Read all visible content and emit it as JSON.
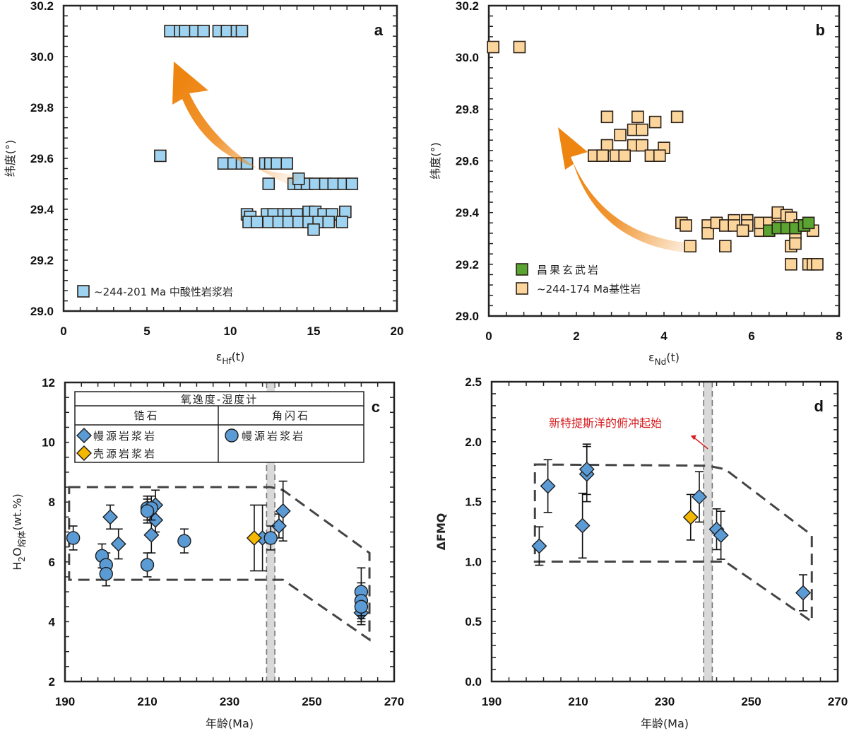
{
  "chart_data": [
    {
      "panel": "a",
      "type": "scatter",
      "title": "",
      "xlabel": "εHf(t)",
      "xlabel_main": "ε",
      "xlabel_sub": "Hf",
      "xlabel_tail": "(t)",
      "ylabel": "纬度(°)",
      "xlim": [
        0,
        20
      ],
      "ylim": [
        29.0,
        30.2
      ],
      "xticks": [
        0,
        5,
        10,
        15,
        20
      ],
      "yticks": [
        29.0,
        29.2,
        29.4,
        29.6,
        29.8,
        30.0,
        30.2
      ],
      "ytick_labels": [
        "29.0",
        "29.2",
        "29.4",
        "29.6",
        "29.8",
        "30.0",
        "30.2"
      ],
      "grid": false,
      "legend_position": "bottom-left",
      "panel_letter": "a",
      "trend_arrow": {
        "from": [
          12.7,
          29.45
        ],
        "to": [
          6.0,
          30.0
        ],
        "color": "#ee8511"
      },
      "series": [
        {
          "name": "~244-201 Ma 中酸性岩浆岩",
          "marker": "square",
          "color": "#9fd3f2",
          "points": [
            [
              6.4,
              30.1
            ],
            [
              7.0,
              30.1
            ],
            [
              7.3,
              30.1
            ],
            [
              7.9,
              30.1
            ],
            [
              8.4,
              30.1
            ],
            [
              9.3,
              30.1
            ],
            [
              9.8,
              30.1
            ],
            [
              10.4,
              30.1
            ],
            [
              10.7,
              30.1
            ],
            [
              5.8,
              29.61
            ],
            [
              9.6,
              29.58
            ],
            [
              10.2,
              29.58
            ],
            [
              10.7,
              29.58
            ],
            [
              11.0,
              29.58
            ],
            [
              12.1,
              29.58
            ],
            [
              12.4,
              29.58
            ],
            [
              12.8,
              29.58
            ],
            [
              13.4,
              29.58
            ],
            [
              12.3,
              29.5
            ],
            [
              13.8,
              29.5
            ],
            [
              14.2,
              29.5
            ],
            [
              14.6,
              29.5
            ],
            [
              15.1,
              29.5
            ],
            [
              15.7,
              29.5
            ],
            [
              16.2,
              29.5
            ],
            [
              16.8,
              29.5
            ],
            [
              17.3,
              29.5
            ],
            [
              14.1,
              29.52
            ],
            [
              11.0,
              29.38
            ],
            [
              11.2,
              29.37
            ],
            [
              12.2,
              29.38
            ],
            [
              12.6,
              29.38
            ],
            [
              13.2,
              29.38
            ],
            [
              13.5,
              29.38
            ],
            [
              14.0,
              29.38
            ],
            [
              14.7,
              29.39
            ],
            [
              15.1,
              29.39
            ],
            [
              15.6,
              29.38
            ],
            [
              16.1,
              29.38
            ],
            [
              16.9,
              29.39
            ],
            [
              11.1,
              29.35
            ],
            [
              11.6,
              29.35
            ],
            [
              12.3,
              29.35
            ],
            [
              12.9,
              29.35
            ],
            [
              13.5,
              29.35
            ],
            [
              14.1,
              29.35
            ],
            [
              14.7,
              29.35
            ],
            [
              15.3,
              29.35
            ],
            [
              15.9,
              29.35
            ],
            [
              16.7,
              29.35
            ],
            [
              15.0,
              29.32
            ]
          ]
        }
      ]
    },
    {
      "panel": "b",
      "type": "scatter",
      "title": "",
      "xlabel": "εNd(t)",
      "xlabel_main": "ε",
      "xlabel_sub": "Nd",
      "xlabel_tail": "(t)",
      "ylabel": "纬度(°)",
      "xlim": [
        0,
        8
      ],
      "ylim": [
        29.0,
        30.2
      ],
      "xticks": [
        0,
        2,
        4,
        6,
        8
      ],
      "yticks": [
        29.0,
        29.2,
        29.4,
        29.6,
        29.8,
        30.0,
        30.2
      ],
      "ytick_labels": [
        "29.0",
        "29.2",
        "29.4",
        "29.6",
        "29.8",
        "30.0",
        "30.2"
      ],
      "grid": false,
      "legend_position": "bottom-left",
      "panel_letter": "b",
      "trend_arrow": {
        "from": [
          4.6,
          29.26
        ],
        "to": [
          1.6,
          29.73
        ],
        "color": "#ee8511"
      },
      "series": [
        {
          "name": "昌果玄武岩",
          "marker": "square",
          "color": "#5aa532",
          "points": [
            [
              6.4,
              29.33
            ],
            [
              6.6,
              29.34
            ],
            [
              6.8,
              29.34
            ],
            [
              7.0,
              29.34
            ],
            [
              7.2,
              29.35
            ],
            [
              7.3,
              29.36
            ]
          ]
        },
        {
          "name": "~244-174 Ma基性岩",
          "marker": "square",
          "color": "#fcd59c",
          "points": [
            [
              0.1,
              30.04
            ],
            [
              0.7,
              30.04
            ],
            [
              2.7,
              29.77
            ],
            [
              3.4,
              29.77
            ],
            [
              3.8,
              29.75
            ],
            [
              4.3,
              29.77
            ],
            [
              3.3,
              29.72
            ],
            [
              3.5,
              29.72
            ],
            [
              3.0,
              29.7
            ],
            [
              2.7,
              29.66
            ],
            [
              3.3,
              29.66
            ],
            [
              3.5,
              29.66
            ],
            [
              4.0,
              29.65
            ],
            [
              2.4,
              29.62
            ],
            [
              2.6,
              29.62
            ],
            [
              2.9,
              29.62
            ],
            [
              3.1,
              29.62
            ],
            [
              3.7,
              29.62
            ],
            [
              3.9,
              29.62
            ],
            [
              4.4,
              29.36
            ],
            [
              4.5,
              29.35
            ],
            [
              4.6,
              29.27
            ],
            [
              5.0,
              29.35
            ],
            [
              5.0,
              29.32
            ],
            [
              5.2,
              29.36
            ],
            [
              5.4,
              29.35
            ],
            [
              5.6,
              29.37
            ],
            [
              5.6,
              29.35
            ],
            [
              5.9,
              29.37
            ],
            [
              5.9,
              29.35
            ],
            [
              5.8,
              29.33
            ],
            [
              6.2,
              29.33
            ],
            [
              6.2,
              29.36
            ],
            [
              6.4,
              29.36
            ],
            [
              6.6,
              29.39
            ],
            [
              6.6,
              29.4
            ],
            [
              6.8,
              29.39
            ],
            [
              6.9,
              29.38
            ],
            [
              7.0,
              29.32
            ],
            [
              7.1,
              29.35
            ],
            [
              7.4,
              29.33
            ],
            [
              5.4,
              29.27
            ],
            [
              6.9,
              29.27
            ],
            [
              7.0,
              29.28
            ],
            [
              6.9,
              29.2
            ],
            [
              7.3,
              29.2
            ],
            [
              7.4,
              29.2
            ],
            [
              7.5,
              29.2
            ]
          ]
        }
      ]
    },
    {
      "panel": "c",
      "type": "scatter",
      "title": "",
      "xlabel": "年龄(Ma)",
      "ylabel": "H2O熔体(wt.%)",
      "ylabel_main": "H",
      "ylabel_sub": "2",
      "ylabel_mid": "O",
      "ylabel_sub2": "熔体",
      "ylabel_tail": "(wt.%)",
      "xlim": [
        190,
        270
      ],
      "ylim": [
        2,
        12
      ],
      "xticks": [
        190,
        210,
        230,
        250,
        270
      ],
      "yticks": [
        2,
        4,
        6,
        8,
        10,
        12
      ],
      "ytick_labels": [
        "2",
        "4",
        "6",
        "8",
        "10",
        "12"
      ],
      "grid": false,
      "panel_letter": "c",
      "band": {
        "x": [
          239,
          241
        ],
        "color": "#d9d9d9"
      },
      "envelope": [
        [
          191,
          8.5
        ],
        [
          240,
          8.5
        ],
        [
          243,
          8.4
        ],
        [
          264,
          6.3
        ],
        [
          264,
          3.4
        ],
        [
          243,
          5.4
        ],
        [
          240,
          5.4
        ],
        [
          191,
          5.4
        ]
      ],
      "legend": {
        "title": "氧逸度-湿度计",
        "col1_header": "锆石",
        "col2_header": "角闪石",
        "col1_items": [
          "幔源岩浆岩",
          "壳源岩浆岩"
        ],
        "col2_items": [
          "幔源岩浆岩"
        ]
      },
      "series": [
        {
          "name": "锆石 幔源岩浆岩",
          "marker": "diamond",
          "color": "#5b9bd5",
          "points": [
            {
              "x": 201,
              "y": 7.5,
              "err": 0.4
            },
            {
              "x": 203,
              "y": 6.6,
              "err": 0.5
            },
            {
              "x": 211,
              "y": 6.9,
              "err": 0.6
            },
            {
              "x": 212,
              "y": 7.4,
              "err": 0.4
            },
            {
              "x": 212,
              "y": 7.9,
              "err": 0.5
            },
            {
              "x": 238,
              "y": 6.8,
              "err": 1.1
            },
            {
              "x": 242,
              "y": 7.2,
              "err": 0.4
            },
            {
              "x": 243,
              "y": 7.7,
              "err": 1.0
            },
            {
              "x": 262,
              "y": 4.3,
              "err": 0.3
            }
          ]
        },
        {
          "name": "锆石 壳源岩浆岩",
          "marker": "diamond",
          "color": "#f5b800",
          "points": [
            {
              "x": 236,
              "y": 6.8,
              "err": 1.1
            }
          ]
        },
        {
          "name": "角闪石 幔源岩浆岩",
          "marker": "circle",
          "color": "#5b9bd5",
          "points": [
            {
              "x": 192,
              "y": 6.8,
              "err": 0.4
            },
            {
              "x": 199,
              "y": 6.2,
              "err": 0.4
            },
            {
              "x": 200,
              "y": 5.9,
              "err": 0.4
            },
            {
              "x": 200,
              "y": 5.6,
              "err": 0.4
            },
            {
              "x": 210,
              "y": 5.9,
              "err": 0.4
            },
            {
              "x": 210,
              "y": 7.8,
              "err": 0.4
            },
            {
              "x": 211,
              "y": 7.8,
              "err": 0.4
            },
            {
              "x": 210,
              "y": 7.7,
              "err": 0.4
            },
            {
              "x": 219,
              "y": 6.7,
              "err": 0.4
            },
            {
              "x": 240,
              "y": 6.8,
              "err": 0.4
            },
            {
              "x": 262,
              "y": 5.0,
              "err": 0.8
            },
            {
              "x": 262,
              "y": 4.7,
              "err": 0.6
            },
            {
              "x": 262,
              "y": 4.5,
              "err": 0.6
            }
          ]
        }
      ]
    },
    {
      "panel": "d",
      "type": "scatter",
      "title": "",
      "xlabel": "年龄(Ma)",
      "ylabel": "ΔFMQ",
      "xlim": [
        190,
        270
      ],
      "ylim": [
        0.0,
        2.5
      ],
      "xticks": [
        190,
        210,
        230,
        250,
        270
      ],
      "yticks": [
        0.0,
        0.5,
        1.0,
        1.5,
        2.0,
        2.5
      ],
      "ytick_labels": [
        "0.0",
        "0.5",
        "1.0",
        "1.5",
        "2.0",
        "2.5"
      ],
      "grid": false,
      "panel_letter": "d",
      "band": {
        "x": [
          239,
          241
        ],
        "color": "#d9d9d9"
      },
      "envelope": [
        [
          200,
          1.81
        ],
        [
          240,
          1.8
        ],
        [
          244,
          1.77
        ],
        [
          264,
          1.22
        ],
        [
          264,
          0.5
        ],
        [
          244,
          1.0
        ],
        [
          240,
          1.0
        ],
        [
          200,
          1.0
        ]
      ],
      "annotation": {
        "text": "新特提斯洋的俯冲起始",
        "color": "#d7191c",
        "arrow_from": [
          240,
          1.94
        ],
        "arrow_to": [
          236,
          2.05
        ]
      },
      "series": [
        {
          "name": "锆石 幔源岩浆岩",
          "marker": "diamond",
          "color": "#5b9bd5",
          "points": [
            {
              "x": 201,
              "y": 1.13,
              "err_lo": 0.16,
              "err_hi": 0.16
            },
            {
              "x": 203,
              "y": 1.63,
              "err_lo": 0.22,
              "err_hi": 0.22
            },
            {
              "x": 211,
              "y": 1.3,
              "err_lo": 0.27,
              "err_hi": 0.27
            },
            {
              "x": 212,
              "y": 1.73,
              "err_lo": 0.23,
              "err_hi": 0.23
            },
            {
              "x": 212,
              "y": 1.77,
              "err_lo": 0.21,
              "err_hi": 0.21
            },
            {
              "x": 238,
              "y": 1.54,
              "err_lo": 0.21,
              "err_hi": 0.21
            },
            {
              "x": 242,
              "y": 1.27,
              "err_lo": 0.17,
              "err_hi": 0.17
            },
            {
              "x": 243,
              "y": 1.22,
              "err_lo": 0.2,
              "err_hi": 0.2
            },
            {
              "x": 262,
              "y": 0.74,
              "err_lo": 0.15,
              "err_hi": 0.15
            }
          ]
        },
        {
          "name": "锆石 壳源岩浆岩",
          "marker": "diamond",
          "color": "#f5b800",
          "points": [
            {
              "x": 236,
              "y": 1.37,
              "err_lo": 0.19,
              "err_hi": 0.19
            }
          ]
        }
      ]
    }
  ]
}
